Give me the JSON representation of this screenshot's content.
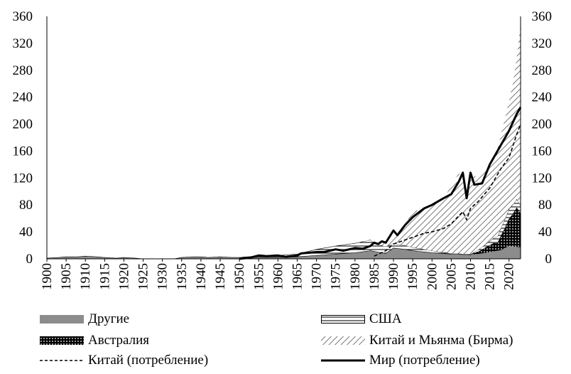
{
  "chart_data": {
    "type": "area",
    "xlabel": "",
    "ylabel": "",
    "ylim": [
      0,
      360
    ],
    "y_ticks": [
      "0",
      "40",
      "80",
      "120",
      "160",
      "200",
      "240",
      "280",
      "320",
      "360"
    ],
    "x_ticks": [
      "1900",
      "1905",
      "1910",
      "1915",
      "1920",
      "1925",
      "1930",
      "1935",
      "1940",
      "1945",
      "1950",
      "1955",
      "1960",
      "1965",
      "1970",
      "1975",
      "1980",
      "1985",
      "1990",
      "1995",
      "2000",
      "2005",
      "2010",
      "2015",
      "2020"
    ],
    "x_range": [
      1900,
      2023
    ],
    "stacked_series": [
      {
        "name": "Другие",
        "style": "solid-gray",
        "points": [
          [
            1900,
            1
          ],
          [
            1903,
            2
          ],
          [
            1905,
            3
          ],
          [
            1908,
            3
          ],
          [
            1910,
            4
          ],
          [
            1913,
            3
          ],
          [
            1915,
            2
          ],
          [
            1918,
            1
          ],
          [
            1920,
            2
          ],
          [
            1923,
            1
          ],
          [
            1925,
            0
          ],
          [
            1930,
            0
          ],
          [
            1933,
            0
          ],
          [
            1935,
            2
          ],
          [
            1938,
            3
          ],
          [
            1940,
            3
          ],
          [
            1942,
            2
          ],
          [
            1945,
            3
          ],
          [
            1948,
            2
          ],
          [
            1950,
            2
          ],
          [
            1955,
            2
          ],
          [
            1960,
            2
          ],
          [
            1965,
            3
          ],
          [
            1970,
            5
          ],
          [
            1975,
            7
          ],
          [
            1980,
            9
          ],
          [
            1984,
            12
          ],
          [
            1986,
            10
          ],
          [
            1988,
            8
          ],
          [
            1990,
            16
          ],
          [
            1993,
            14
          ],
          [
            1995,
            12
          ],
          [
            2000,
            9
          ],
          [
            2005,
            7
          ],
          [
            2010,
            6
          ],
          [
            2013,
            8
          ],
          [
            2015,
            10
          ],
          [
            2018,
            13
          ],
          [
            2020,
            19
          ],
          [
            2023,
            17
          ]
        ]
      },
      {
        "name": "Австралия",
        "style": "black-dots",
        "points": [
          [
            1900,
            0
          ],
          [
            2010,
            0
          ],
          [
            2012,
            3
          ],
          [
            2014,
            8
          ],
          [
            2016,
            12
          ],
          [
            2017,
            11
          ],
          [
            2018,
            22
          ],
          [
            2019,
            30
          ],
          [
            2020,
            40
          ],
          [
            2021,
            48
          ],
          [
            2022,
            58
          ],
          [
            2023,
            50
          ]
        ]
      },
      {
        "name": "США",
        "style": "horizontal-lines",
        "points": [
          [
            1900,
            0
          ],
          [
            1950,
            0
          ],
          [
            1952,
            1
          ],
          [
            1955,
            2
          ],
          [
            1960,
            3
          ],
          [
            1965,
            4
          ],
          [
            1970,
            9
          ],
          [
            1975,
            12
          ],
          [
            1980,
            14
          ],
          [
            1984,
            16
          ],
          [
            1985,
            12
          ],
          [
            1988,
            10
          ],
          [
            1990,
            7
          ],
          [
            1995,
            5
          ],
          [
            2000,
            3
          ],
          [
            2003,
            2
          ],
          [
            2005,
            1
          ],
          [
            2010,
            1
          ],
          [
            2013,
            4
          ],
          [
            2015,
            6
          ],
          [
            2018,
            12
          ],
          [
            2020,
            15
          ],
          [
            2023,
            12
          ]
        ]
      },
      {
        "name": "Китай и Мьянма (Бирма)",
        "style": "diagonal-hatch",
        "points": [
          [
            1900,
            0
          ],
          [
            1980,
            0
          ],
          [
            1985,
            1
          ],
          [
            1988,
            5
          ],
          [
            1990,
            10
          ],
          [
            1993,
            30
          ],
          [
            1995,
            55
          ],
          [
            1998,
            58
          ],
          [
            2000,
            68
          ],
          [
            2003,
            80
          ],
          [
            2005,
            100
          ],
          [
            2007,
            120
          ],
          [
            2009,
            100
          ],
          [
            2010,
            115
          ],
          [
            2012,
            110
          ],
          [
            2015,
            110
          ],
          [
            2017,
            130
          ],
          [
            2019,
            150
          ],
          [
            2020,
            160
          ],
          [
            2021,
            180
          ],
          [
            2022,
            210
          ],
          [
            2023,
            270
          ]
        ]
      }
    ],
    "line_series": [
      {
        "name": "Китай (потребление)",
        "style": "dashed",
        "points": [
          [
            1985,
            4
          ],
          [
            1988,
            12
          ],
          [
            1990,
            22
          ],
          [
            1993,
            28
          ],
          [
            1995,
            32
          ],
          [
            1998,
            38
          ],
          [
            2000,
            40
          ],
          [
            2003,
            45
          ],
          [
            2005,
            52
          ],
          [
            2008,
            70
          ],
          [
            2009,
            58
          ],
          [
            2010,
            75
          ],
          [
            2012,
            85
          ],
          [
            2015,
            105
          ],
          [
            2018,
            135
          ],
          [
            2020,
            150
          ],
          [
            2022,
            185
          ],
          [
            2023,
            200
          ]
        ]
      },
      {
        "name": "Мир (потребление)",
        "style": "solid-thick",
        "points": [
          [
            1950,
            0
          ],
          [
            1953,
            2
          ],
          [
            1955,
            5
          ],
          [
            1957,
            4
          ],
          [
            1960,
            5
          ],
          [
            1962,
            3
          ],
          [
            1965,
            5
          ],
          [
            1966,
            8
          ],
          [
            1968,
            9
          ],
          [
            1970,
            10
          ],
          [
            1972,
            10
          ],
          [
            1975,
            14
          ],
          [
            1977,
            12
          ],
          [
            1980,
            16
          ],
          [
            1982,
            15
          ],
          [
            1984,
            19
          ],
          [
            1985,
            24
          ],
          [
            1986,
            22
          ],
          [
            1987,
            26
          ],
          [
            1988,
            24
          ],
          [
            1990,
            42
          ],
          [
            1991,
            35
          ],
          [
            1993,
            50
          ],
          [
            1995,
            62
          ],
          [
            1998,
            75
          ],
          [
            2000,
            80
          ],
          [
            2003,
            90
          ],
          [
            2005,
            96
          ],
          [
            2007,
            115
          ],
          [
            2008,
            128
          ],
          [
            2009,
            90
          ],
          [
            2010,
            128
          ],
          [
            2011,
            110
          ],
          [
            2013,
            112
          ],
          [
            2015,
            140
          ],
          [
            2017,
            160
          ],
          [
            2019,
            180
          ],
          [
            2020,
            190
          ],
          [
            2022,
            215
          ],
          [
            2023,
            225
          ]
        ]
      }
    ],
    "legend": [
      {
        "label": "Другие",
        "style": "solid-gray"
      },
      {
        "label": "США",
        "style": "horizontal-lines"
      },
      {
        "label": "Австралия",
        "style": "black-dots"
      },
      {
        "label": "Китай и Мьянма (Бирма)",
        "style": "diagonal-hatch"
      },
      {
        "label": "Китай (потребление)",
        "style": "dashed"
      },
      {
        "label": "Мир (потребление)",
        "style": "solid-thick"
      }
    ],
    "legend_position": "bottom",
    "grid": false
  }
}
